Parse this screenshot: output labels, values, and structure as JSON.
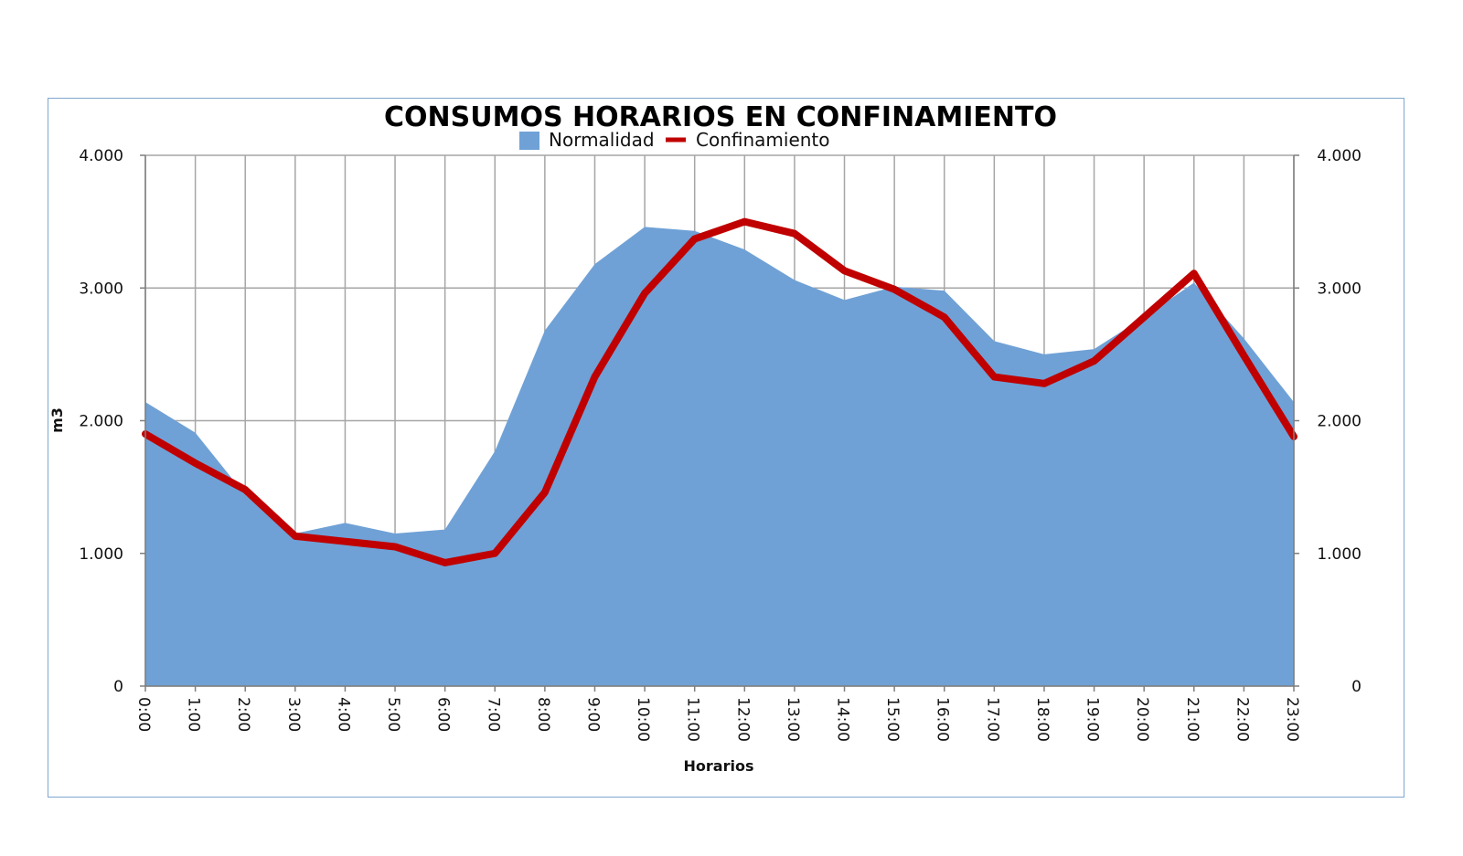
{
  "chart_data": {
    "type": "area",
    "title": "CONSUMOS HORARIOS EN CONFINAMIENTO",
    "xlabel": "Horarios",
    "ylabel": "m3",
    "ylim": [
      0,
      4000
    ],
    "y_ticks": [
      "0",
      "1.000",
      "2.000",
      "3.000",
      "4.000"
    ],
    "y_tick_values": [
      0,
      1000,
      2000,
      3000,
      4000
    ],
    "secondary_y_axis": true,
    "grid": true,
    "legend_position": "top",
    "categories": [
      "0:00",
      "1:00",
      "2:00",
      "3:00",
      "4:00",
      "5:00",
      "6:00",
      "7:00",
      "8:00",
      "9:00",
      "10:00",
      "11:00",
      "12:00",
      "13:00",
      "14:00",
      "15:00",
      "16:00",
      "17:00",
      "18:00",
      "19:00",
      "20:00",
      "21:00",
      "22:00",
      "23:00"
    ],
    "series": [
      {
        "name": "Normalidad",
        "type": "area",
        "color": "#6fa1d6",
        "values": [
          2140,
          1910,
          1440,
          1150,
          1230,
          1150,
          1180,
          1770,
          2680,
          3180,
          3460,
          3430,
          3290,
          3060,
          2910,
          3010,
          2980,
          2600,
          2500,
          2540,
          2780,
          3040,
          2620,
          2140
        ]
      },
      {
        "name": "Confinamiento",
        "type": "line",
        "color": "#c00000",
        "values": [
          1900,
          1680,
          1480,
          1130,
          1090,
          1050,
          930,
          1000,
          1460,
          2330,
          2960,
          3370,
          3500,
          3410,
          3130,
          2990,
          2780,
          2330,
          2280,
          2450,
          2780,
          3110,
          2490,
          1880
        ]
      }
    ]
  }
}
